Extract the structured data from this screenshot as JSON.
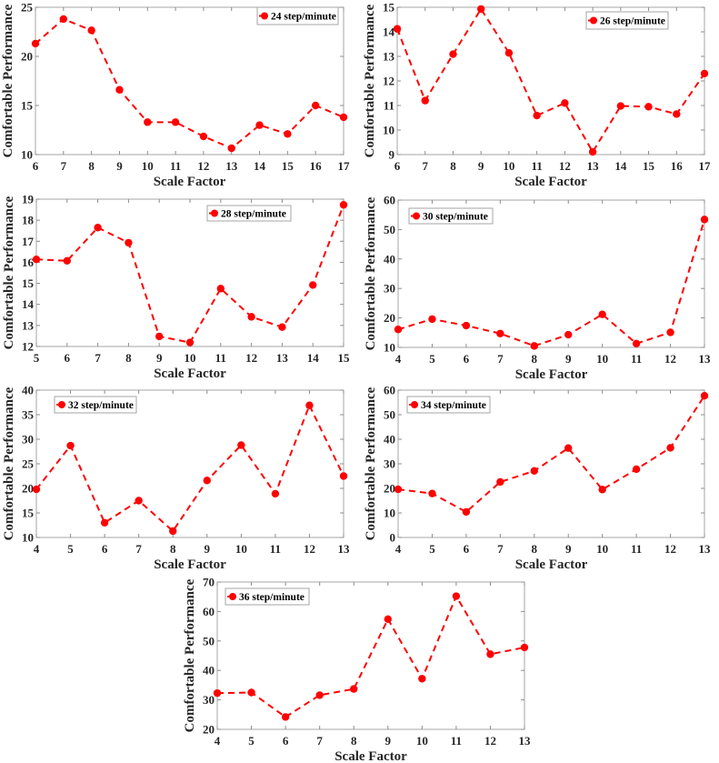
{
  "chart_data": [
    {
      "type": "line",
      "legend": "24 step/minute",
      "legend_position": "top-right",
      "xlabel": "Scale Factor",
      "ylabel": "Comfortable Performance",
      "x": [
        6,
        7,
        8,
        9,
        10,
        11,
        12,
        13,
        14,
        15,
        16,
        17
      ],
      "values": [
        21.3,
        23.8,
        22.65,
        16.6,
        13.3,
        13.3,
        11.85,
        10.65,
        13.0,
        12.1,
        15.0,
        13.8
      ],
      "xlim": [
        6,
        17
      ],
      "ylim": [
        10,
        25
      ],
      "yticks": [
        10,
        15,
        20,
        25
      ],
      "xticks": [
        6,
        7,
        8,
        9,
        10,
        11,
        12,
        13,
        14,
        15,
        16,
        17
      ],
      "grid": false,
      "color": "#ff0000"
    },
    {
      "type": "line",
      "legend": "26 step/minute",
      "legend_position": "top-right",
      "xlabel": "Scale Factor",
      "ylabel": "Comfortable Performance",
      "x": [
        6,
        7,
        8,
        9,
        10,
        11,
        12,
        13,
        14,
        15,
        16,
        17
      ],
      "values": [
        14.12,
        11.2,
        13.09,
        14.93,
        13.14,
        10.59,
        11.1,
        9.11,
        10.98,
        10.95,
        10.65,
        12.3
      ],
      "xlim": [
        6,
        17
      ],
      "ylim": [
        9,
        15
      ],
      "yticks": [
        9,
        10,
        11,
        12,
        13,
        14,
        15
      ],
      "xticks": [
        6,
        7,
        8,
        9,
        10,
        11,
        12,
        13,
        14,
        15,
        16,
        17
      ],
      "grid": false,
      "color": "#ff0000"
    },
    {
      "type": "line",
      "legend": "28 step/minute",
      "legend_position": "top-right",
      "xlabel": "Scale Factor",
      "ylabel": "Comfortable Performance",
      "x": [
        5,
        6,
        7,
        8,
        9,
        10,
        11,
        12,
        13,
        14,
        15
      ],
      "values": [
        16.14,
        16.07,
        17.65,
        16.93,
        12.48,
        12.19,
        14.75,
        13.41,
        12.92,
        14.92,
        18.73
      ],
      "xlim": [
        5,
        15
      ],
      "ylim": [
        12,
        19
      ],
      "yticks": [
        12,
        13,
        14,
        15,
        16,
        17,
        18,
        19
      ],
      "xticks": [
        5,
        6,
        7,
        8,
        9,
        10,
        11,
        12,
        13,
        14,
        15
      ],
      "grid": false,
      "color": "#ff0000"
    },
    {
      "type": "line",
      "legend": "30 step/minute",
      "legend_position": "top-left",
      "xlabel": "Scale Factor",
      "ylabel": "Comfortable Performance",
      "x": [
        4,
        5,
        6,
        7,
        8,
        9,
        10,
        11,
        12,
        13
      ],
      "values": [
        16.1,
        19.6,
        17.4,
        14.7,
        10.5,
        14.3,
        21.2,
        11.3,
        15.1,
        53.4
      ],
      "xlim": [
        4,
        13
      ],
      "ylim": [
        10,
        60
      ],
      "yticks": [
        10,
        20,
        30,
        40,
        50,
        60
      ],
      "xticks": [
        4,
        5,
        6,
        7,
        8,
        9,
        10,
        11,
        12,
        13
      ],
      "grid": false,
      "color": "#ff0000"
    },
    {
      "type": "line",
      "legend": "32 step/minute",
      "legend_position": "top-left",
      "xlabel": "Scale Factor",
      "ylabel": "Comfortable Performance",
      "x": [
        4,
        5,
        6,
        7,
        8,
        9,
        10,
        11,
        12,
        13
      ],
      "values": [
        19.8,
        28.7,
        13.0,
        17.5,
        11.3,
        21.6,
        28.8,
        18.9,
        36.9,
        22.5
      ],
      "xlim": [
        4,
        13
      ],
      "ylim": [
        10,
        40
      ],
      "yticks": [
        10,
        15,
        20,
        25,
        30,
        35,
        40
      ],
      "xticks": [
        4,
        5,
        6,
        7,
        8,
        9,
        10,
        11,
        12,
        13
      ],
      "grid": false,
      "color": "#ff0000"
    },
    {
      "type": "line",
      "legend": "34 step/minute",
      "legend_position": "top-left",
      "xlabel": "Scale Factor",
      "ylabel": "Comfortable Performance",
      "x": [
        4,
        5,
        6,
        7,
        8,
        9,
        10,
        11,
        12,
        13
      ],
      "values": [
        19.6,
        17.9,
        10.4,
        22.6,
        27.1,
        36.4,
        19.5,
        27.8,
        36.5,
        57.7
      ],
      "xlim": [
        4,
        13
      ],
      "ylim": [
        0,
        60
      ],
      "yticks": [
        0,
        10,
        20,
        30,
        40,
        50,
        60
      ],
      "xticks": [
        4,
        5,
        6,
        7,
        8,
        9,
        10,
        11,
        12,
        13
      ],
      "grid": false,
      "color": "#ff0000"
    },
    {
      "type": "line",
      "legend": "36 step/minute",
      "legend_position": "top-left",
      "xlabel": "Scale Factor",
      "ylabel": "Comfortable Performance",
      "x": [
        4,
        5,
        6,
        7,
        8,
        9,
        10,
        11,
        12,
        13
      ],
      "values": [
        32.3,
        32.5,
        24.2,
        31.6,
        33.7,
        57.4,
        37.2,
        65.2,
        45.5,
        47.8
      ],
      "xlim": [
        4,
        13
      ],
      "ylim": [
        20,
        70
      ],
      "yticks": [
        20,
        30,
        40,
        50,
        60,
        70
      ],
      "xticks": [
        4,
        5,
        6,
        7,
        8,
        9,
        10,
        11,
        12,
        13
      ],
      "grid": false,
      "color": "#ff0000"
    }
  ]
}
